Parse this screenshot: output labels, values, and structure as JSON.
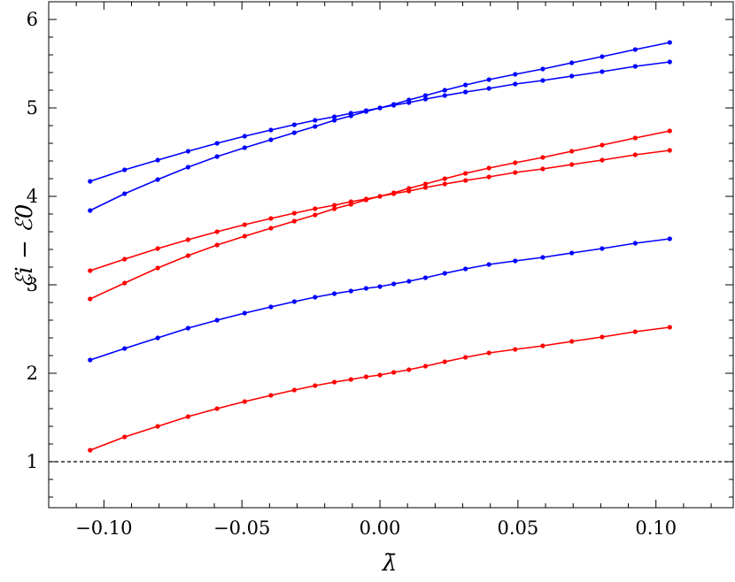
{
  "chart_data": {
    "type": "line",
    "xlabel": "λ̄",
    "ylabel": "ℰi − ℰ0",
    "xlim": [
      -0.12,
      0.128
    ],
    "ylim": [
      0.48,
      6.2
    ],
    "x_ticks": [
      -0.1,
      -0.05,
      0.0,
      0.05,
      0.1
    ],
    "x_tick_labels": [
      "−0.10",
      "−0.05",
      "0.00",
      "0.05",
      "0.10"
    ],
    "y_ticks": [
      1,
      2,
      3,
      4,
      5,
      6
    ],
    "y_tick_labels": [
      "1",
      "2",
      "3",
      "4",
      "5",
      "6"
    ],
    "grid": false,
    "reference_line": {
      "y": 1,
      "style": "dashed",
      "color": "#000000"
    },
    "series": [
      {
        "color": "#ff0000",
        "x": [
          -0.105,
          -0.0925,
          -0.0805,
          -0.0695,
          -0.059,
          -0.049,
          -0.0395,
          -0.031,
          -0.0235,
          -0.0165,
          -0.0105,
          -0.005,
          0.0,
          0.005,
          0.0105,
          0.0165,
          0.0235,
          0.031,
          0.0395,
          0.049,
          0.059,
          0.0695,
          0.0805,
          0.0925,
          0.105
        ],
        "y": [
          1.13,
          1.28,
          1.4,
          1.51,
          1.6,
          1.68,
          1.75,
          1.81,
          1.86,
          1.9,
          1.93,
          1.96,
          1.98,
          2.01,
          2.04,
          2.08,
          2.13,
          2.18,
          2.23,
          2.27,
          2.31,
          2.36,
          2.41,
          2.47,
          2.52
        ]
      },
      {
        "color": "#0000ff",
        "x": [
          -0.105,
          -0.0925,
          -0.0805,
          -0.0695,
          -0.059,
          -0.049,
          -0.0395,
          -0.031,
          -0.0235,
          -0.0165,
          -0.0105,
          -0.005,
          0.0,
          0.005,
          0.0105,
          0.0165,
          0.0235,
          0.031,
          0.0395,
          0.049,
          0.059,
          0.0695,
          0.0805,
          0.0925,
          0.105
        ],
        "y": [
          2.15,
          2.28,
          2.4,
          2.51,
          2.6,
          2.68,
          2.75,
          2.81,
          2.86,
          2.9,
          2.93,
          2.96,
          2.98,
          3.01,
          3.04,
          3.08,
          3.13,
          3.18,
          3.23,
          3.27,
          3.31,
          3.36,
          3.41,
          3.47,
          3.52
        ]
      },
      {
        "color": "#ff0000",
        "x": [
          -0.105,
          -0.0925,
          -0.0805,
          -0.0695,
          -0.059,
          -0.049,
          -0.0395,
          -0.031,
          -0.0235,
          -0.0165,
          -0.0105,
          -0.005,
          0.0,
          0.005,
          0.0105,
          0.0165,
          0.0235,
          0.031,
          0.0395,
          0.049,
          0.059,
          0.0695,
          0.0805,
          0.0925,
          0.105
        ],
        "y": [
          2.84,
          3.02,
          3.19,
          3.33,
          3.45,
          3.55,
          3.64,
          3.72,
          3.79,
          3.86,
          3.91,
          3.96,
          4.0,
          4.04,
          4.09,
          4.14,
          4.2,
          4.26,
          4.32,
          4.38,
          4.44,
          4.51,
          4.58,
          4.66,
          4.74
        ]
      },
      {
        "color": "#ff0000",
        "x": [
          -0.105,
          -0.0925,
          -0.0805,
          -0.0695,
          -0.059,
          -0.049,
          -0.0395,
          -0.031,
          -0.0235,
          -0.0165,
          -0.0105,
          -0.005,
          0.0,
          0.005,
          0.0105,
          0.0165,
          0.0235,
          0.031,
          0.0395,
          0.049,
          0.059,
          0.0695,
          0.0805,
          0.0925,
          0.105
        ],
        "y": [
          3.16,
          3.29,
          3.41,
          3.51,
          3.6,
          3.68,
          3.75,
          3.81,
          3.86,
          3.9,
          3.94,
          3.97,
          4.0,
          4.03,
          4.06,
          4.1,
          4.14,
          4.18,
          4.22,
          4.27,
          4.31,
          4.36,
          4.41,
          4.47,
          4.52
        ]
      },
      {
        "color": "#0000ff",
        "x": [
          -0.105,
          -0.0925,
          -0.0805,
          -0.0695,
          -0.059,
          -0.049,
          -0.0395,
          -0.031,
          -0.0235,
          -0.0165,
          -0.0105,
          -0.005,
          0.0,
          0.005,
          0.0105,
          0.0165,
          0.0235,
          0.031,
          0.0395,
          0.049,
          0.059,
          0.0695,
          0.0805,
          0.0925,
          0.105
        ],
        "y": [
          3.84,
          4.03,
          4.19,
          4.33,
          4.45,
          4.55,
          4.64,
          4.72,
          4.79,
          4.86,
          4.91,
          4.96,
          5.0,
          5.04,
          5.09,
          5.14,
          5.2,
          5.26,
          5.32,
          5.38,
          5.44,
          5.51,
          5.58,
          5.66,
          5.74
        ]
      },
      {
        "color": "#0000ff",
        "x": [
          -0.105,
          -0.0925,
          -0.0805,
          -0.0695,
          -0.059,
          -0.049,
          -0.0395,
          -0.031,
          -0.0235,
          -0.0165,
          -0.0105,
          -0.005,
          0.0,
          0.005,
          0.0105,
          0.0165,
          0.0235,
          0.031,
          0.0395,
          0.049,
          0.059,
          0.0695,
          0.0805,
          0.0925,
          0.105
        ],
        "y": [
          4.17,
          4.3,
          4.41,
          4.51,
          4.6,
          4.68,
          4.75,
          4.81,
          4.86,
          4.9,
          4.94,
          4.97,
          5.0,
          5.03,
          5.06,
          5.1,
          5.14,
          5.18,
          5.22,
          5.27,
          5.31,
          5.36,
          5.41,
          5.47,
          5.52
        ]
      }
    ]
  }
}
